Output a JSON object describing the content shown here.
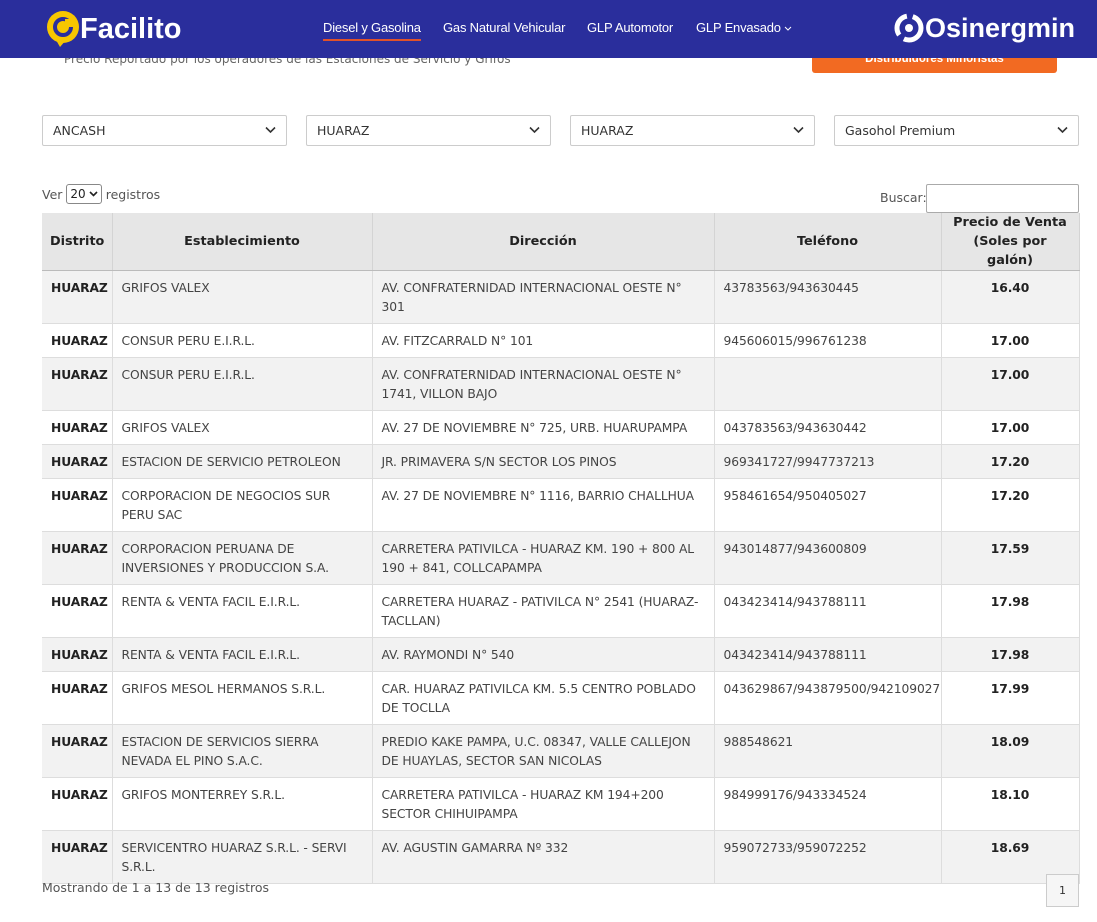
{
  "header": {
    "logo": "Facilito",
    "nav": [
      "Diesel y Gasolina",
      "Gas Natural Vehicular",
      "GLP Automotor",
      "GLP Envasado"
    ],
    "brand": "Osinergmin"
  },
  "intro": {
    "subtitle": "Precio Reportado por los operadores de las Estaciones de Servicio y Grifos",
    "button": "Consultar Precios de los Distribuidores Minoristas"
  },
  "filters": [
    "ANCASH",
    "HUARAZ",
    "HUARAZ",
    "Gasohol Premium"
  ],
  "length": {
    "before": "Ver",
    "value": "20",
    "after": "registros"
  },
  "search_label": "Buscar:",
  "table": {
    "columns": [
      "Distrito",
      "Establecimiento",
      "Dirección",
      "Teléfono",
      "Precio de Venta (Soles por galón)"
    ],
    "rows": [
      [
        "HUARAZ",
        "GRIFOS VALEX",
        "AV. CONFRATERNIDAD INTERNACIONAL OESTE N° 301",
        "43783563/943630445",
        "16.40"
      ],
      [
        "HUARAZ",
        "CONSUR PERU E.I.R.L.",
        "AV. FITZCARRALD N° 101",
        "945606015/996761238",
        "17.00"
      ],
      [
        "HUARAZ",
        "CONSUR PERU E.I.R.L.",
        "AV. CONFRATERNIDAD INTERNACIONAL OESTE N° 1741, VILLON BAJO",
        null,
        "17.00"
      ],
      [
        "HUARAZ",
        "GRIFOS VALEX",
        "AV. 27 DE NOVIEMBRE N° 725, URB. HUARUPAMPA",
        "043783563/943630442",
        "17.00"
      ],
      [
        "HUARAZ",
        "ESTACION DE SERVICIO PETROLEON",
        "JR. PRIMAVERA S/N SECTOR LOS PINOS",
        "969341727/9947737213",
        "17.20"
      ],
      [
        "HUARAZ",
        "CORPORACION DE NEGOCIOS SUR PERU SAC",
        "AV. 27 DE NOVIEMBRE N° 1116, BARRIO CHALLHUA",
        "958461654/950405027",
        "17.20"
      ],
      [
        "HUARAZ",
        "CORPORACION PERUANA DE INVERSIONES Y PRODUCCION S.A.",
        "CARRETERA PATIVILCA - HUARAZ KM. 190 + 800 AL 190 + 841, COLLCAPAMPA",
        "943014877/943600809",
        "17.59"
      ],
      [
        "HUARAZ",
        "RENTA & VENTA FACIL E.I.R.L.",
        "CARRETERA HUARAZ - PATIVILCA N° 2541 (HUARAZ-TACLLAN)",
        "043423414/943788111",
        "17.98"
      ],
      [
        "HUARAZ",
        "RENTA & VENTA FACIL E.I.R.L.",
        "AV. RAYMONDI N° 540",
        "043423414/943788111",
        "17.98"
      ],
      [
        "HUARAZ",
        "GRIFOS MESOL HERMANOS S.R.L.",
        "CAR. HUARAZ PATIVILCA KM. 5.5 CENTRO POBLADO DE TOCLLA",
        "043629867/943879500/942109027",
        "17.99"
      ],
      [
        "HUARAZ",
        "ESTACION DE SERVICIOS SIERRA NEVADA EL PINO S.A.C.",
        "PREDIO KAKE PAMPA, U.C. 08347, VALLE CALLEJON DE HUAYLAS, SECTOR SAN NICOLAS",
        "988548621",
        "18.09"
      ],
      [
        "HUARAZ",
        "GRIFOS MONTERREY S.R.L.",
        "CARRETERA PATIVILCA - HUARAZ KM 194+200 SECTOR CHIHUIPAMPA",
        "984999176/943334524",
        "18.10"
      ],
      [
        "HUARAZ",
        "SERVICENTRO HUARAZ S.R.L. - SERVI S.R.L.",
        "AV. AGUSTIN GAMARRA Nº 332",
        "959072733/959072252",
        "18.69"
      ]
    ]
  },
  "info": "Mostrando de 1 a 13 de 13 registros",
  "pagination": [
    "1"
  ]
}
